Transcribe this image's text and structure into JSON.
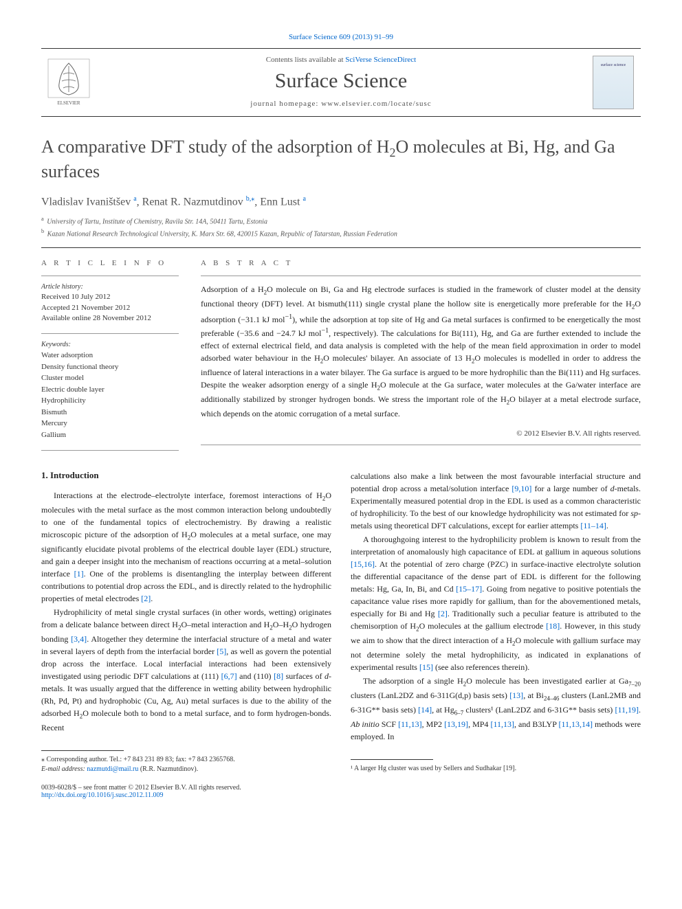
{
  "top_citation": "Surface Science 609 (2013) 91–99",
  "header": {
    "contents_prefix": "Contents lists available at ",
    "contents_link": "SciVerse ScienceDirect",
    "journal_name": "Surface Science",
    "homepage_label": "journal homepage: www.elsevier.com/locate/susc",
    "cover_text": "surface science"
  },
  "title": "A comparative DFT study of the adsorption of H₂O molecules at Bi, Hg, and Ga surfaces",
  "authors_html": "Vladislav Ivaništšev ᵃ, Renat R. Nazmutdinov ᵇ·⁎, Enn Lust ᵃ",
  "authors": [
    {
      "name": "Vladislav Ivaništšev",
      "aff": "a"
    },
    {
      "name": "Renat R. Nazmutdinov",
      "aff": "b,",
      "corr": "⁎"
    },
    {
      "name": "Enn Lust",
      "aff": "a"
    }
  ],
  "affiliations": [
    {
      "sup": "a",
      "text": "University of Tartu, Institute of Chemistry, Ravila Str. 14A, 50411 Tartu, Estonia"
    },
    {
      "sup": "b",
      "text": "Kazan National Research Technological University, K. Marx Str. 68, 420015 Kazan, Republic of Tatarstan, Russian Federation"
    }
  ],
  "article_info": {
    "heading": "A R T I C L E   I N F O",
    "history_label": "Article history:",
    "history": [
      "Received 10 July 2012",
      "Accepted 21 November 2012",
      "Available online 28 November 2012"
    ],
    "keywords_label": "Keywords:",
    "keywords": [
      "Water adsorption",
      "Density functional theory",
      "Cluster model",
      "Electric double layer",
      "Hydrophilicity",
      "Bismuth",
      "Mercury",
      "Gallium"
    ]
  },
  "abstract": {
    "heading": "A B S T R A C T",
    "text": "Adsorption of a H₂O molecule on Bi, Ga and Hg electrode surfaces is studied in the framework of cluster model at the density functional theory (DFT) level. At bismuth(111) single crystal plane the hollow site is energetically more preferable for the H₂O adsorption (−31.1 kJ mol⁻¹), while the adsorption at top site of Hg and Ga metal surfaces is confirmed to be energetically the most preferable (−35.6 and −24.7 kJ mol⁻¹, respectively). The calculations for Bi(111), Hg, and Ga are further extended to include the effect of external electrical field, and data analysis is completed with the help of the mean field approximation in order to model adsorbed water behaviour in the H₂O molecules' bilayer. An associate of 13 H₂O molecules is modelled in order to address the influence of lateral interactions in a water bilayer. The Ga surface is argued to be more hydrophilic than the Bi(111) and Hg surfaces. Despite the weaker adsorption energy of a single H₂O molecule at the Ga surface, water molecules at the Ga/water interface are additionally stabilized by stronger hydrogen bonds. We stress the important role of the H₂O bilayer at a metal electrode surface, which depends on the atomic corrugation of a metal surface.",
    "copyright": "© 2012 Elsevier B.V. All rights reserved."
  },
  "body": {
    "section_heading": "1. Introduction",
    "left_paras": [
      "Interactions at the electrode–electrolyte interface, foremost interactions of H₂O molecules with the metal surface as the most common interaction belong undoubtedly to one of the fundamental topics of electrochemistry. By drawing a realistic microscopic picture of the adsorption of H₂O molecules at a metal surface, one may significantly elucidate pivotal problems of the electrical double layer (EDL) structure, and gain a deeper insight into the mechanism of reactions occurring at a metal–solution interface [1]. One of the problems is disentangling the interplay between different contributions to potential drop across the EDL, and is directly related to the hydrophilic properties of metal electrodes [2].",
      "Hydrophilicity of metal single crystal surfaces (in other words, wetting) originates from a delicate balance between direct H₂O–metal interaction and H₂O–H₂O hydrogen bonding [3,4]. Altogether they determine the interfacial structure of a metal and water in several layers of depth from the interfacial border [5], as well as govern the potential drop across the interface. Local interfacial interactions had been extensively investigated using periodic DFT calculations at (111) [6,7] and (110) [8] surfaces of d-metals. It was usually argued that the difference in wetting ability between hydrophilic (Rh, Pd, Pt) and hydrophobic (Cu, Ag, Au) metal surfaces is due to the ability of the adsorbed H₂O molecule both to bond to a metal surface, and to form hydrogen-bonds. Recent"
    ],
    "right_paras": [
      "calculations also make a link between the most favourable interfacial structure and potential drop across a metal/solution interface [9,10] for a large number of d-metals. Experimentally measured potential drop in the EDL is used as a common characteristic of hydrophilicity. To the best of our knowledge hydrophilicity was not estimated for sp-metals using theoretical DFT calculations, except for earlier attempts [11–14].",
      "A thoroughgoing interest to the hydrophilicity problem is known to result from the interpretation of anomalously high capacitance of EDL at gallium in aqueous solutions [15,16]. At the potential of zero charge (PZC) in surface-inactive electrolyte solution the differential capacitance of the dense part of EDL is different for the following metals: Hg, Ga, In, Bi, and Cd [15–17]. Going from negative to positive potentials the capacitance value rises more rapidly for gallium, than for the abovementioned metals, especially for Bi and Hg [2]. Traditionally such a peculiar feature is attributed to the chemisorption of H₂O molecules at the gallium electrode [18]. However, in this study we aim to show that the direct interaction of a H₂O molecule with gallium surface may not determine solely the metal hydrophilicity, as indicated in explanations of experimental results [15] (see also references therein).",
      "The adsorption of a single H₂O molecule has been investigated earlier at Ga₇₋₂₀ clusters (LanL2DZ and 6-311G(d,p) basis sets) [13], at Bi₂₄₋₄₆ clusters (LanL2MB and 6-31G** basis sets) [14], at Hg₆₋₇ clusters¹ (LanL2DZ and 6-31G** basis sets) [11,19]. Ab initio SCF [11,13], MP2 [13,19], MP4 [11,13], and B3LYP [11,13,14] methods were employed. In"
    ]
  },
  "footnotes": {
    "corresponding": "⁎ Corresponding author. Tel.: +7 843 231 89 83; fax: +7 843 2365768.",
    "email_label": "E-mail address: ",
    "email": "nazmutdi@mail.ru",
    "email_attribution": " (R.R. Nazmutdinov).",
    "right_footnote": "¹ A larger Hg cluster was used by Sellers and Sudhakar [19]."
  },
  "bottom": {
    "issn_line": "0039-6028/$ – see front matter © 2012 Elsevier B.V. All rights reserved.",
    "doi": "http://dx.doi.org/10.1016/j.susc.2012.11.009"
  },
  "colors": {
    "link": "#0066cc",
    "text": "#222222",
    "muted": "#555555"
  }
}
